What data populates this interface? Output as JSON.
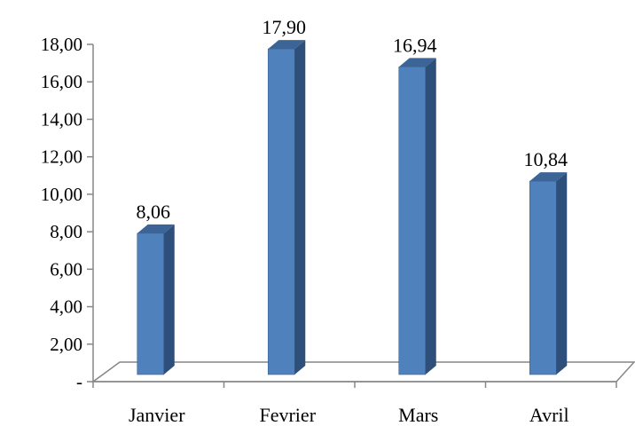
{
  "chart_data": {
    "type": "bar",
    "style": "3d-column",
    "categories": [
      "Janvier",
      "Fevrier",
      "Mars",
      "Avril"
    ],
    "values": [
      8.06,
      17.9,
      16.94,
      10.84
    ],
    "data_labels": [
      "8,06",
      "17,90",
      "16,94",
      "10,84"
    ],
    "yticks": [
      "-",
      "2,00",
      "4,00",
      "6,00",
      "8,00",
      "10,00",
      "12,00",
      "14,00",
      "16,00",
      "18,00"
    ],
    "ylim": [
      0,
      18
    ],
    "ystep": 2,
    "title": "",
    "xlabel": "",
    "ylabel": "",
    "grid": false,
    "legend": "none",
    "colors": {
      "bar_front": "#4F81BD",
      "bar_side": "#2E4F7A",
      "bar_top": "#3C6496",
      "axis": "#868686"
    }
  }
}
